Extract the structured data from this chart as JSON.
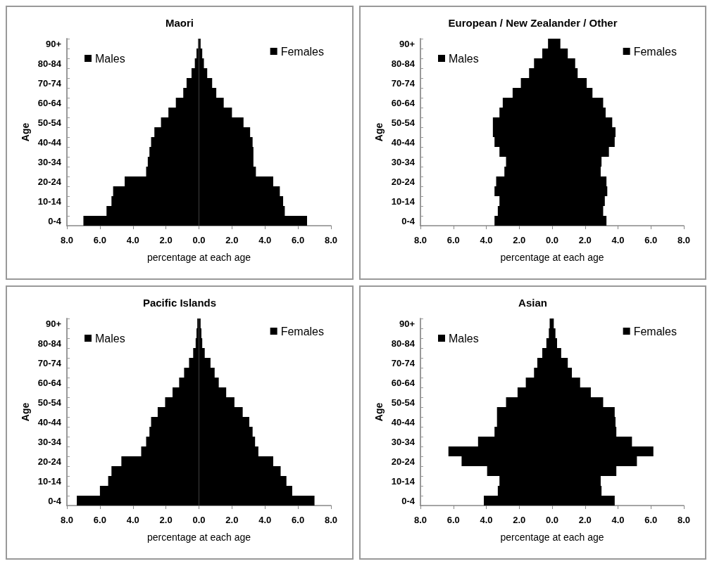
{
  "chart_data": [
    {
      "type": "bar",
      "orientation": "horizontal",
      "stacked": true,
      "legend": "top",
      "title": "Maori",
      "xlabel": "percentage at each age",
      "ylabel": "Age",
      "categories": [
        "90+",
        null,
        "80-84",
        null,
        "70-74",
        null,
        "60-64",
        null,
        "50-54",
        null,
        "40-44",
        null,
        "30-34",
        null,
        "20-24",
        null,
        "10-14",
        null,
        "0-4"
      ],
      "series": [
        {
          "name": "Males",
          "color": "#000000",
          "values": [
            -0.05,
            -0.15,
            -0.25,
            -0.45,
            -0.75,
            -0.95,
            -1.4,
            -1.85,
            -2.3,
            -2.7,
            -2.9,
            -3.0,
            -3.1,
            -3.2,
            -4.5,
            -5.2,
            -5.3,
            -5.6,
            -7.0
          ]
        },
        {
          "name": "Females",
          "color": "#000000",
          "values": [
            0.1,
            0.2,
            0.3,
            0.5,
            0.8,
            1.05,
            1.5,
            2.0,
            2.7,
            3.1,
            3.25,
            3.3,
            3.3,
            3.45,
            4.5,
            4.9,
            5.1,
            5.2,
            6.55
          ]
        }
      ],
      "xlim": [
        -8,
        8
      ],
      "xticks": [
        {
          "value": -8,
          "label": "8.0"
        },
        {
          "value": -6,
          "label": "6.0"
        },
        {
          "value": -4,
          "label": "4.0"
        },
        {
          "value": -2,
          "label": "2.0"
        },
        {
          "value": 0,
          "label": "0.0"
        },
        {
          "value": 2,
          "label": "2.0"
        },
        {
          "value": 4,
          "label": "4.0"
        },
        {
          "value": 6,
          "label": "6.0"
        },
        {
          "value": 8,
          "label": "8.0"
        }
      ]
    },
    {
      "type": "bar",
      "orientation": "horizontal",
      "stacked": true,
      "legend": "top",
      "title": "European / New Zealander / Other",
      "xlabel": "percentage at each age",
      "ylabel": "Age",
      "categories": [
        "90+",
        null,
        "80-84",
        null,
        "70-74",
        null,
        "60-64",
        null,
        "50-54",
        null,
        "40-44",
        null,
        "30-34",
        null,
        "20-24",
        null,
        "10-14",
        null,
        "0-4"
      ],
      "series": [
        {
          "name": "Males",
          "color": "#000000",
          "values": [
            -0.25,
            -0.6,
            -1.1,
            -1.4,
            -1.9,
            -2.4,
            -3.0,
            -3.2,
            -3.6,
            -3.6,
            -3.5,
            -3.2,
            -2.8,
            -2.9,
            -3.4,
            -3.5,
            -3.2,
            -3.3,
            -3.5
          ]
        },
        {
          "name": "Females",
          "color": "#000000",
          "values": [
            0.5,
            0.95,
            1.4,
            1.55,
            2.1,
            2.45,
            3.1,
            3.25,
            3.65,
            3.85,
            3.8,
            3.45,
            3.0,
            2.95,
            3.3,
            3.35,
            3.2,
            3.1,
            3.3
          ]
        }
      ],
      "xlim": [
        -8,
        8
      ],
      "xticks": [
        {
          "value": -8,
          "label": "8.0"
        },
        {
          "value": -6,
          "label": "6.0"
        },
        {
          "value": -4,
          "label": "4.0"
        },
        {
          "value": -2,
          "label": "2.0"
        },
        {
          "value": 0,
          "label": "0.0"
        },
        {
          "value": 2,
          "label": "2.0"
        },
        {
          "value": 4,
          "label": "4.0"
        },
        {
          "value": 6,
          "label": "6.0"
        },
        {
          "value": 8,
          "label": "8.0"
        }
      ]
    },
    {
      "type": "bar",
      "orientation": "horizontal",
      "stacked": true,
      "legend": "top",
      "title": "Pacific Islands",
      "xlabel": "percentage at each age",
      "ylabel": "Age",
      "categories": [
        "90+",
        null,
        "80-84",
        null,
        "70-74",
        null,
        "60-64",
        null,
        "50-54",
        null,
        "40-44",
        null,
        "30-34",
        null,
        "20-24",
        null,
        "10-14",
        null,
        "0-4"
      ],
      "series": [
        {
          "name": "Males",
          "color": "#000000",
          "values": [
            -0.1,
            -0.15,
            -0.2,
            -0.35,
            -0.6,
            -0.9,
            -1.2,
            -1.6,
            -2.05,
            -2.5,
            -2.9,
            -3.0,
            -3.2,
            -3.5,
            -4.7,
            -5.3,
            -5.5,
            -6.0,
            -7.4
          ]
        },
        {
          "name": "Females",
          "color": "#000000",
          "values": [
            0.1,
            0.15,
            0.2,
            0.35,
            0.7,
            0.95,
            1.2,
            1.65,
            2.15,
            2.65,
            3.05,
            3.25,
            3.4,
            3.6,
            4.5,
            4.95,
            5.3,
            5.65,
            7.0
          ]
        }
      ],
      "xlim": [
        -8,
        8
      ],
      "xticks": [
        {
          "value": -8,
          "label": "8.0"
        },
        {
          "value": -6,
          "label": "6.0"
        },
        {
          "value": -4,
          "label": "4.0"
        },
        {
          "value": -2,
          "label": "2.0"
        },
        {
          "value": 0,
          "label": "0.0"
        },
        {
          "value": 2,
          "label": "2.0"
        },
        {
          "value": 4,
          "label": "4.0"
        },
        {
          "value": 6,
          "label": "6.0"
        },
        {
          "value": 8,
          "label": "8.0"
        }
      ]
    },
    {
      "type": "bar",
      "orientation": "horizontal",
      "stacked": true,
      "legend": "top",
      "title": "Asian",
      "xlabel": "percentage at each age",
      "ylabel": "Age",
      "categories": [
        "90+",
        null,
        "80-84",
        null,
        "70-74",
        null,
        "60-64",
        null,
        "50-54",
        null,
        "40-44",
        null,
        "30-34",
        null,
        "20-24",
        null,
        "10-14",
        null,
        "0-4"
      ],
      "series": [
        {
          "name": "Males",
          "color": "#000000",
          "values": [
            -0.15,
            -0.2,
            -0.35,
            -0.6,
            -0.9,
            -1.1,
            -1.6,
            -2.1,
            -2.8,
            -3.35,
            -3.35,
            -3.5,
            -4.5,
            -6.3,
            -5.5,
            -3.95,
            -3.2,
            -3.3,
            -4.15
          ]
        },
        {
          "name": "Females",
          "color": "#000000",
          "values": [
            0.1,
            0.2,
            0.3,
            0.55,
            0.95,
            1.2,
            1.7,
            2.35,
            3.1,
            3.8,
            3.85,
            3.9,
            4.85,
            6.15,
            5.15,
            3.9,
            2.95,
            3.0,
            3.8
          ]
        }
      ],
      "xlim": [
        -8,
        8
      ],
      "xticks": [
        {
          "value": -8,
          "label": "8.0"
        },
        {
          "value": -6,
          "label": "6.0"
        },
        {
          "value": -4,
          "label": "4.0"
        },
        {
          "value": -2,
          "label": "2.0"
        },
        {
          "value": 0,
          "label": "0.0"
        },
        {
          "value": 2,
          "label": "2.0"
        },
        {
          "value": 4,
          "label": "4.0"
        },
        {
          "value": 6,
          "label": "6.0"
        },
        {
          "value": 8,
          "label": "8.0"
        }
      ]
    }
  ]
}
